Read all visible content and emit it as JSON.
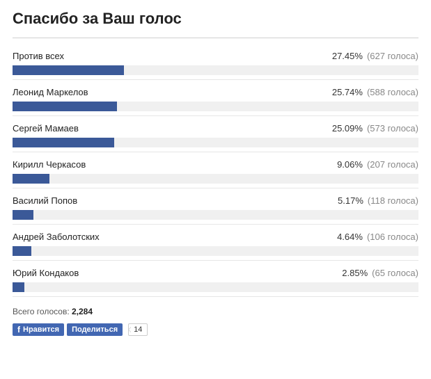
{
  "title": "Спасибо за Ваш голос",
  "bar_color": "#3b5998",
  "track_color": "#f0f0f0",
  "items": [
    {
      "label": "Против всех",
      "pct": "27.45%",
      "votes": "(627 голоса)",
      "width": "27.45%"
    },
    {
      "label": "Леонид Маркелов",
      "pct": "25.74%",
      "votes": "(588 голоса)",
      "width": "25.74%"
    },
    {
      "label": "Сергей Мамаев",
      "pct": "25.09%",
      "votes": "(573 голоса)",
      "width": "25.09%"
    },
    {
      "label": "Кирилл Черкасов",
      "pct": "9.06%",
      "votes": "(207 голоса)",
      "width": "9.06%"
    },
    {
      "label": "Василий Попов",
      "pct": "5.17%",
      "votes": "(118 голоса)",
      "width": "5.17%"
    },
    {
      "label": "Андрей Заболотских",
      "pct": "4.64%",
      "votes": "(106 голоса)",
      "width": "4.64%"
    },
    {
      "label": "Юрий Кондаков",
      "pct": "2.85%",
      "votes": "(65 голоса)",
      "width": "2.85%"
    }
  ],
  "total_label": "Всего голосов:",
  "total_value": "2,284",
  "like_label": "Нравится",
  "share_label": "Поделиться",
  "share_count": "14"
}
